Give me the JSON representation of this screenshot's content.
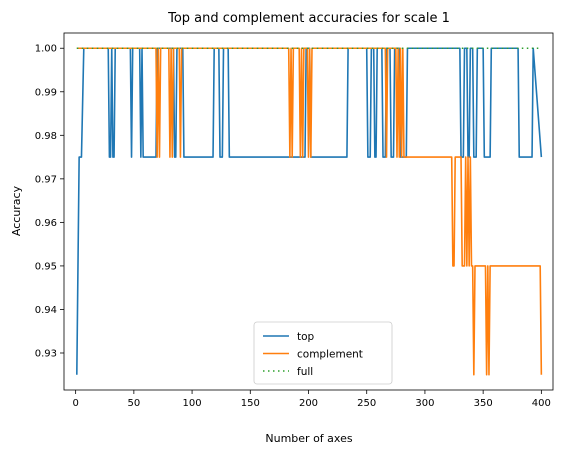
{
  "chart_data": {
    "type": "line",
    "title": "Top and complement accuracies for scale 1",
    "xlabel": "Number of axes",
    "ylabel": "Accuracy",
    "xlim": [
      -10,
      410
    ],
    "ylim": [
      0.9215,
      1.0035
    ],
    "xticks": [
      0,
      50,
      100,
      150,
      200,
      250,
      300,
      350,
      400
    ],
    "yticks": [
      0.93,
      0.94,
      0.95,
      0.96,
      0.97,
      0.98,
      0.99,
      1.0
    ],
    "ytick_labels": [
      "0.93",
      "0.94",
      "0.95",
      "0.96",
      "0.97",
      "0.98",
      "0.99",
      "1.00"
    ],
    "legend_position": "lower center",
    "series": [
      {
        "name": "top",
        "color": "#1f77b4",
        "style": "solid",
        "x": [
          1,
          3,
          5,
          7,
          9,
          28,
          29,
          30,
          31,
          32,
          33,
          34,
          35,
          47,
          48,
          49,
          55,
          56,
          57,
          58,
          59,
          69,
          70,
          84,
          85,
          86,
          87,
          92,
          93,
          95,
          96,
          118,
          119,
          123,
          124,
          126,
          127,
          131,
          132,
          134,
          135,
          197,
          198,
          201,
          202,
          233,
          234,
          250,
          251,
          253,
          254,
          256,
          257,
          258,
          259,
          263,
          264,
          266,
          267,
          270,
          271,
          273,
          274,
          278,
          279,
          284,
          285,
          330,
          331,
          333,
          334,
          336,
          337,
          338,
          339,
          341,
          342,
          344,
          345,
          350,
          351,
          356,
          357,
          380,
          381,
          392,
          393,
          400
        ],
        "values": [
          0.925,
          0.975,
          0.975,
          1.0,
          1.0,
          1.0,
          0.975,
          0.975,
          1.0,
          0.975,
          0.975,
          1.0,
          1.0,
          1.0,
          0.975,
          1.0,
          1.0,
          0.975,
          1.0,
          0.975,
          0.975,
          0.975,
          1.0,
          1.0,
          0.975,
          0.975,
          1.0,
          1.0,
          0.975,
          0.975,
          0.975,
          0.975,
          1.0,
          1.0,
          0.975,
          0.975,
          1.0,
          1.0,
          0.975,
          0.975,
          0.975,
          0.975,
          1.0,
          1.0,
          0.975,
          0.975,
          1.0,
          1.0,
          0.975,
          0.975,
          1.0,
          1.0,
          0.975,
          0.975,
          1.0,
          1.0,
          0.975,
          0.975,
          1.0,
          1.0,
          0.975,
          0.975,
          1.0,
          1.0,
          0.975,
          0.975,
          1.0,
          1.0,
          0.975,
          0.975,
          1.0,
          1.0,
          0.975,
          0.975,
          1.0,
          1.0,
          0.975,
          0.975,
          1.0,
          1.0,
          0.975,
          0.975,
          1.0,
          1.0,
          0.975,
          0.975,
          1.0,
          0.975
        ]
      },
      {
        "name": "complement",
        "color": "#ff7f0e",
        "style": "solid",
        "x": [
          1,
          69,
          70,
          71,
          72,
          73,
          74,
          80,
          81,
          82,
          83,
          84,
          86,
          87,
          89,
          90,
          91,
          92,
          183,
          184,
          185,
          186,
          187,
          188,
          192,
          193,
          194,
          195,
          196,
          199,
          200,
          201,
          202,
          203,
          204,
          266,
          267,
          268,
          269,
          275,
          276,
          277,
          278,
          279,
          280,
          281,
          282,
          283,
          323,
          324,
          325,
          326,
          327,
          331,
          332,
          334,
          335,
          336,
          337,
          338,
          339,
          340,
          341,
          342,
          343,
          344,
          345,
          346,
          347,
          352,
          353,
          354,
          355,
          356,
          357,
          398,
          399,
          400
        ],
        "values": [
          1.0,
          1.0,
          0.975,
          1.0,
          0.975,
          1.0,
          1.0,
          1.0,
          0.975,
          1.0,
          0.975,
          1.0,
          1.0,
          1.0,
          1.0,
          0.975,
          1.0,
          1.0,
          1.0,
          0.975,
          1.0,
          0.975,
          1.0,
          1.0,
          1.0,
          0.975,
          1.0,
          0.975,
          1.0,
          1.0,
          0.975,
          1.0,
          0.975,
          1.0,
          1.0,
          1.0,
          0.975,
          1.0,
          1.0,
          1.0,
          0.975,
          1.0,
          0.975,
          1.0,
          0.975,
          1.0,
          0.975,
          0.975,
          0.975,
          0.95,
          0.95,
          0.975,
          0.975,
          0.975,
          0.95,
          0.95,
          0.975,
          0.95,
          0.975,
          0.95,
          0.975,
          0.95,
          0.95,
          0.925,
          0.95,
          0.95,
          0.95,
          0.95,
          0.95,
          0.95,
          0.925,
          0.95,
          0.925,
          0.95,
          0.95,
          0.95,
          0.95,
          0.925
        ]
      },
      {
        "name": "full",
        "color": "#2ca02c",
        "style": "dotted",
        "x": [
          1,
          400
        ],
        "values": [
          1.0,
          1.0
        ]
      }
    ]
  }
}
